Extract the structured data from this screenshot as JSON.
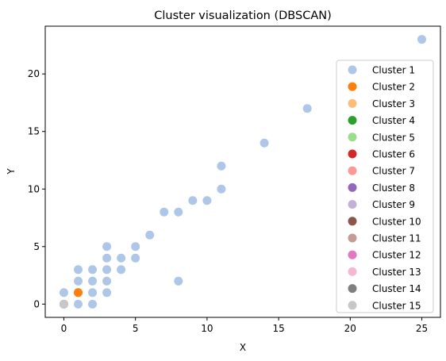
{
  "chart_data": {
    "type": "scatter",
    "title": "Cluster visualization (DBSCAN)",
    "xlabel": "X",
    "ylabel": "Y",
    "xlim": [
      -1.3,
      26.3
    ],
    "ylim": [
      -1.15,
      24.15
    ],
    "xticks": [
      0,
      5,
      10,
      15,
      20,
      25
    ],
    "yticks": [
      0,
      5,
      10,
      15,
      20
    ],
    "grid": false,
    "legend_position": "right",
    "series": [
      {
        "name": "Cluster 1",
        "color": "#aec7e8",
        "points": [
          [
            25,
            23
          ],
          [
            17,
            17
          ],
          [
            14,
            14
          ],
          [
            11,
            12
          ],
          [
            11,
            10
          ],
          [
            9,
            9
          ],
          [
            10,
            9
          ],
          [
            7,
            8
          ],
          [
            8,
            8
          ],
          [
            6,
            6
          ],
          [
            3,
            5
          ],
          [
            5,
            5
          ],
          [
            3,
            4
          ],
          [
            4,
            4
          ],
          [
            5,
            4
          ],
          [
            1,
            3
          ],
          [
            2,
            3
          ],
          [
            3,
            3
          ],
          [
            4,
            3
          ],
          [
            1,
            2
          ],
          [
            2,
            2
          ],
          [
            3,
            2
          ],
          [
            8,
            2
          ],
          [
            0,
            1
          ],
          [
            1,
            1
          ],
          [
            2,
            1
          ],
          [
            3,
            1
          ],
          [
            1,
            0
          ],
          [
            2,
            0
          ]
        ]
      },
      {
        "name": "Cluster 2",
        "color": "#ff7f0e",
        "points": [
          [
            1,
            1
          ]
        ]
      },
      {
        "name": "Cluster 3",
        "color": "#ffbb78",
        "points": []
      },
      {
        "name": "Cluster 4",
        "color": "#2ca02c",
        "points": []
      },
      {
        "name": "Cluster 5",
        "color": "#98df8a",
        "points": []
      },
      {
        "name": "Cluster 6",
        "color": "#d62728",
        "points": []
      },
      {
        "name": "Cluster 7",
        "color": "#ff9896",
        "points": []
      },
      {
        "name": "Cluster 8",
        "color": "#9467bd",
        "points": []
      },
      {
        "name": "Cluster 9",
        "color": "#c5b0d5",
        "points": []
      },
      {
        "name": "Cluster 10",
        "color": "#8c564b",
        "points": []
      },
      {
        "name": "Cluster 11",
        "color": "#c49c94",
        "points": []
      },
      {
        "name": "Cluster 12",
        "color": "#e377c2",
        "points": []
      },
      {
        "name": "Cluster 13",
        "color": "#f7b6d2",
        "points": []
      },
      {
        "name": "Cluster 14",
        "color": "#7f7f7f",
        "points": [
          [
            0,
            0
          ]
        ]
      },
      {
        "name": "Cluster 15",
        "color": "#c7c7c7",
        "points": [
          [
            0,
            0
          ]
        ]
      }
    ]
  }
}
